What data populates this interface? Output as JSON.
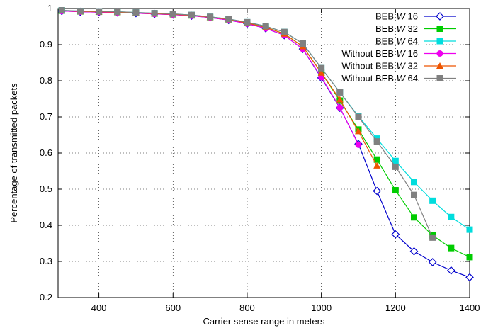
{
  "chart_data": {
    "type": "line",
    "title": "",
    "xlabel": "Carrier sense range in meters",
    "ylabel": "Percentage of transmitted packets",
    "xlim": [
      290,
      1400
    ],
    "ylim": [
      0.2,
      1.0
    ],
    "xticks": [
      400,
      600,
      800,
      1000,
      1200,
      1400
    ],
    "yticks": [
      0.2,
      0.3,
      0.4,
      0.5,
      0.6,
      0.7,
      0.8,
      0.9,
      1
    ],
    "grid": true,
    "legend_position": "top-right",
    "series": [
      {
        "name_parts": [
          "BEB ",
          "W",
          " 16"
        ],
        "color": "#0000cc",
        "marker": "diamond-open",
        "x": [
          300,
          350,
          400,
          450,
          500,
          550,
          600,
          650,
          700,
          750,
          800,
          850,
          900,
          950,
          1000,
          1050,
          1100,
          1150,
          1200,
          1250,
          1300,
          1350,
          1400
        ],
        "y": [
          0.993,
          0.991,
          0.99,
          0.989,
          0.987,
          0.985,
          0.983,
          0.98,
          0.975,
          0.968,
          0.958,
          0.945,
          0.926,
          0.888,
          0.808,
          0.725,
          0.625,
          0.495,
          0.375,
          0.328,
          0.298,
          0.275,
          0.256
        ]
      },
      {
        "name_parts": [
          "BEB ",
          "W",
          " 32"
        ],
        "color": "#00cc00",
        "marker": "square",
        "x": [
          300,
          350,
          400,
          450,
          500,
          550,
          600,
          650,
          700,
          750,
          800,
          850,
          900,
          950,
          1000,
          1050,
          1100,
          1150,
          1200,
          1250,
          1300,
          1350,
          1400
        ],
        "y": [
          0.994,
          0.992,
          0.991,
          0.99,
          0.988,
          0.986,
          0.984,
          0.981,
          0.976,
          0.97,
          0.96,
          0.948,
          0.93,
          0.895,
          0.822,
          0.745,
          0.665,
          0.582,
          0.497,
          0.422,
          0.372,
          0.337,
          0.312
        ]
      },
      {
        "name_parts": [
          "BEB ",
          "W",
          " 64"
        ],
        "color": "#00dddd",
        "marker": "square",
        "x": [
          300,
          350,
          400,
          450,
          500,
          550,
          600,
          650,
          700,
          750,
          800,
          850,
          900,
          950,
          1000,
          1050,
          1100,
          1150,
          1200,
          1250,
          1300,
          1350,
          1400
        ],
        "y": [
          0.995,
          0.993,
          0.992,
          0.991,
          0.989,
          0.987,
          0.985,
          0.982,
          0.977,
          0.971,
          0.962,
          0.951,
          0.935,
          0.903,
          0.835,
          0.768,
          0.702,
          0.64,
          0.578,
          0.52,
          0.468,
          0.423,
          0.388
        ]
      },
      {
        "name_parts": [
          "Without BEB ",
          "W",
          " 16"
        ],
        "color": "#ee00ee",
        "marker": "circle",
        "x": [
          300,
          350,
          400,
          450,
          500,
          550,
          600,
          650,
          700,
          750,
          800,
          850,
          900,
          950,
          1000,
          1050,
          1100
        ],
        "y": [
          0.993,
          0.991,
          0.99,
          0.989,
          0.987,
          0.985,
          0.983,
          0.98,
          0.975,
          0.968,
          0.958,
          0.945,
          0.926,
          0.888,
          0.81,
          0.726,
          0.623
        ]
      },
      {
        "name_parts": [
          "Without  BEB ",
          "W",
          " 32"
        ],
        "color": "#ee5500",
        "marker": "triangle",
        "x": [
          300,
          350,
          400,
          450,
          500,
          550,
          600,
          650,
          700,
          750,
          800,
          850,
          900,
          950,
          1000,
          1050,
          1100,
          1150
        ],
        "y": [
          0.994,
          0.992,
          0.991,
          0.99,
          0.988,
          0.986,
          0.984,
          0.981,
          0.976,
          0.97,
          0.96,
          0.948,
          0.93,
          0.895,
          0.822,
          0.748,
          0.66,
          0.565
        ]
      },
      {
        "name_parts": [
          "Without BEB ",
          "W",
          " 64"
        ],
        "color": "#808080",
        "marker": "square",
        "x": [
          300,
          350,
          400,
          450,
          500,
          550,
          600,
          650,
          700,
          750,
          800,
          850,
          900,
          950,
          1000,
          1050,
          1100,
          1150,
          1200,
          1250,
          1300
        ],
        "y": [
          0.995,
          0.993,
          0.992,
          0.991,
          0.989,
          0.987,
          0.985,
          0.982,
          0.977,
          0.971,
          0.962,
          0.951,
          0.935,
          0.903,
          0.835,
          0.768,
          0.7,
          0.632,
          0.562,
          0.484,
          0.366
        ]
      }
    ]
  }
}
